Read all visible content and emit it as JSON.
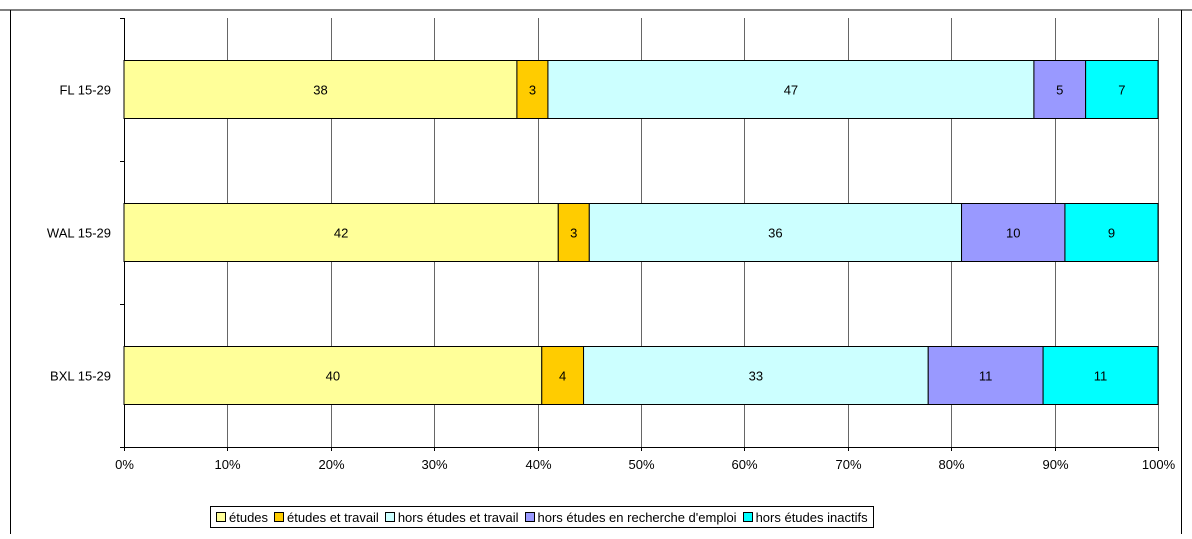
{
  "chart_data": {
    "type": "bar",
    "orientation": "horizontal",
    "stacked": true,
    "percent_stacked": true,
    "title": "",
    "xlabel": "",
    "ylabel": "",
    "categories": [
      "BXL 15-29",
      "WAL 15-29",
      "FL 15-29"
    ],
    "series": [
      {
        "name": "études",
        "color": "#ffff99",
        "values": [
          40,
          42,
          38
        ]
      },
      {
        "name": "études et travail",
        "color": "#ffcc00",
        "values": [
          4,
          3,
          3
        ]
      },
      {
        "name": "hors études et travail",
        "color": "#ccffff",
        "values": [
          33,
          36,
          47
        ]
      },
      {
        "name": "hors études en recherche d'emploi",
        "color": "#9999ff",
        "values": [
          11,
          10,
          5
        ]
      },
      {
        "name": "hors études inactifs",
        "color": "#00ffff",
        "values": [
          11,
          9,
          7
        ]
      }
    ],
    "xlim": [
      0,
      100
    ],
    "x_ticks": [
      "0%",
      "10%",
      "20%",
      "30%",
      "40%",
      "50%",
      "60%",
      "70%",
      "80%",
      "90%",
      "100%"
    ],
    "grid": "vertical",
    "legend_position": "bottom"
  }
}
